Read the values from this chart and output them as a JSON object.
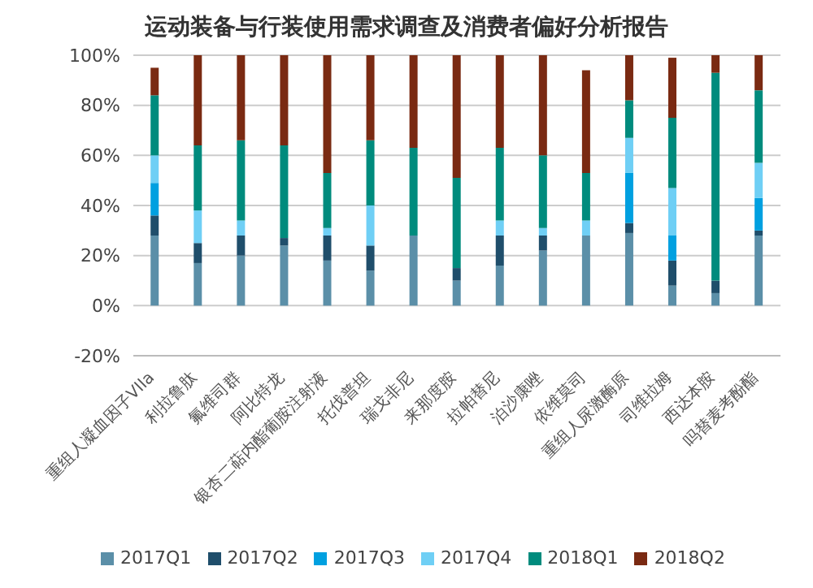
{
  "chart_data": {
    "type": "bar",
    "stacked": true,
    "title": "运动装备与行装使用需求调查及消费者偏好分析报告",
    "categories": [
      "重组人凝血因子VIIa",
      "利拉鲁肽",
      "氟维司群",
      "阿比特龙",
      "银杏二萜内酯葡胺注射液",
      "托伐普坦",
      "瑞戈非尼",
      "来那度胺",
      "拉帕替尼",
      "泊沙康唑",
      "依维莫司",
      "重组人尿激酶原",
      "司维拉姆",
      "西达本胺",
      "吗替麦考酚酯"
    ],
    "series": [
      {
        "name": "2017Q1",
        "color": "#5b8fa8",
        "values": [
          28,
          17,
          20,
          24,
          18,
          14,
          28,
          10,
          16,
          22,
          28,
          29,
          8,
          5,
          28
        ]
      },
      {
        "name": "2017Q2",
        "color": "#1f4e6b",
        "values": [
          8,
          8,
          8,
          3,
          10,
          10,
          0,
          5,
          12,
          6,
          0,
          4,
          10,
          5,
          2
        ]
      },
      {
        "name": "2017Q3",
        "color": "#00a0e0",
        "values": [
          13,
          0,
          0,
          0,
          0,
          0,
          0,
          0,
          0,
          0,
          0,
          20,
          10,
          0,
          13
        ]
      },
      {
        "name": "2017Q4",
        "color": "#6fcff5",
        "values": [
          11,
          13,
          6,
          0,
          3,
          16,
          0,
          0,
          6,
          3,
          6,
          14,
          19,
          0,
          14
        ]
      },
      {
        "name": "2018Q1",
        "color": "#008b7d",
        "values": [
          24,
          26,
          32,
          37,
          22,
          26,
          35,
          36,
          29,
          29,
          19,
          15,
          28,
          83,
          29
        ]
      },
      {
        "name": "2018Q2",
        "color": "#7a2a12",
        "values": [
          11,
          36,
          34,
          36,
          47,
          34,
          37,
          49,
          37,
          40,
          41,
          18,
          24,
          7,
          14
        ]
      }
    ],
    "ylim": [
      -20,
      100
    ],
    "yticks": [
      {
        "value": -20,
        "label": "-20%"
      },
      {
        "value": 0,
        "label": "0%"
      },
      {
        "value": 20,
        "label": "20%"
      },
      {
        "value": 40,
        "label": "40%"
      },
      {
        "value": 60,
        "label": "60%"
      },
      {
        "value": 80,
        "label": "80%"
      },
      {
        "value": 100,
        "label": "100%"
      }
    ],
    "grid": "y",
    "legend": "bottom"
  }
}
